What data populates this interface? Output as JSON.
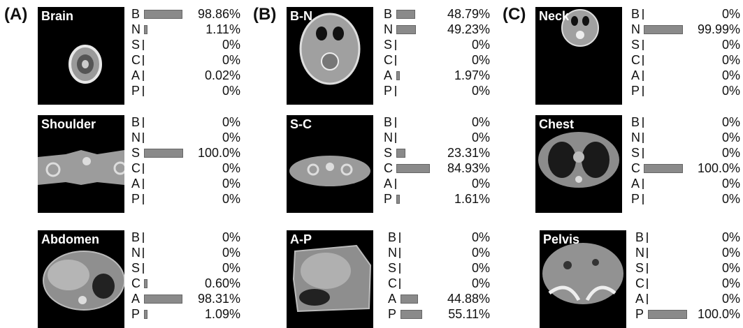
{
  "groups": [
    {
      "label": "(A)",
      "panels": [
        {
          "name": "Brain",
          "scan": "brain",
          "values": [
            98.86,
            1.11,
            0,
            0,
            0.02,
            0
          ],
          "labels": [
            "98.86%",
            "1.11%",
            "0%",
            "0%",
            "0.02%",
            "0%"
          ]
        },
        {
          "name": "Shoulder",
          "scan": "shoulder",
          "values": [
            0,
            0,
            100.0,
            0,
            0,
            0
          ],
          "labels": [
            "0%",
            "0%",
            "100.0%",
            "0%",
            "0%",
            "0%"
          ]
        },
        {
          "name": "Abdomen",
          "scan": "abdomen",
          "values": [
            0,
            0,
            0,
            0.6,
            98.31,
            1.09
          ],
          "labels": [
            "0%",
            "0%",
            "0%",
            "0.60%",
            "98.31%",
            "1.09%"
          ]
        }
      ]
    },
    {
      "label": "(B)",
      "panels": [
        {
          "name": "B-N",
          "scan": "bn",
          "values": [
            48.79,
            49.23,
            0,
            0,
            1.97,
            0
          ],
          "labels": [
            "48.79%",
            "49.23%",
            "0%",
            "0%",
            "1.97%",
            "0%"
          ]
        },
        {
          "name": "S-C",
          "scan": "sc",
          "values": [
            0,
            0,
            23.31,
            84.93,
            0,
            1.61
          ],
          "labels": [
            "0%",
            "0%",
            "23.31%",
            "84.93%",
            "0%",
            "1.61%"
          ]
        },
        {
          "name": "A-P",
          "scan": "ap",
          "values": [
            0,
            0,
            0,
            0,
            44.88,
            55.11
          ],
          "labels": [
            "0%",
            "0%",
            "0%",
            "0%",
            "44.88%",
            "55.11%"
          ]
        }
      ]
    },
    {
      "label": "(C)",
      "panels": [
        {
          "name": "Neck",
          "scan": "neck",
          "values": [
            0,
            99.99,
            0,
            0,
            0,
            0
          ],
          "labels": [
            "0%",
            "99.99%",
            "0%",
            "0%",
            "0%",
            "0%"
          ]
        },
        {
          "name": "Chest",
          "scan": "chest",
          "values": [
            0,
            0,
            0,
            100.0,
            0,
            0
          ],
          "labels": [
            "0%",
            "0%",
            "0%",
            "100.0%",
            "0%",
            "0%"
          ]
        },
        {
          "name": "Pelvis",
          "scan": "pelvis",
          "values": [
            0,
            0,
            0,
            0,
            0,
            100.0
          ],
          "labels": [
            "0%",
            "0%",
            "0%",
            "0%",
            "0%",
            "100.0%"
          ]
        }
      ]
    }
  ],
  "chart_data": {
    "type": "bar",
    "categories": [
      "B",
      "N",
      "S",
      "C",
      "A",
      "P"
    ],
    "note_units": "percent",
    "colors": {
      "bar": "#8a8a8a",
      "image_bg": "#000000"
    }
  }
}
